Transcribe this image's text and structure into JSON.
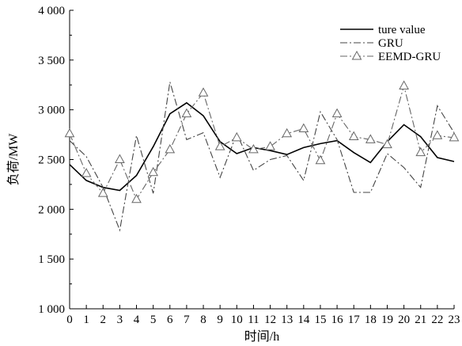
{
  "chart_data": {
    "type": "line",
    "title": "",
    "xlabel": "时间/h",
    "ylabel": "负荷/MW",
    "x": [
      0,
      1,
      2,
      3,
      4,
      5,
      6,
      7,
      8,
      9,
      10,
      11,
      12,
      13,
      14,
      15,
      16,
      17,
      18,
      19,
      20,
      21,
      22,
      23
    ],
    "xlim": [
      0,
      23
    ],
    "ylim": [
      1000,
      4000
    ],
    "y_ticks": [
      1000,
      1500,
      2000,
      2500,
      3000,
      3500,
      4000
    ],
    "y_tick_labels": [
      "1 000",
      "1 500",
      "2 000",
      "2 500",
      "3 000",
      "3 500",
      "4 000"
    ],
    "x_tick_labels": [
      "0",
      "1",
      "2",
      "3",
      "4",
      "5",
      "6",
      "7",
      "8",
      "9",
      "10",
      "11",
      "12",
      "13",
      "14",
      "15",
      "16",
      "17",
      "18",
      "19",
      "20",
      "21",
      "22",
      "23"
    ],
    "grid": false,
    "legend_position": "top-right",
    "series": [
      {
        "name": "ture value",
        "style": "solid",
        "color": "#000000",
        "values": [
          2450,
          2290,
          2220,
          2190,
          2340,
          2630,
          2960,
          3070,
          2940,
          2680,
          2560,
          2620,
          2590,
          2550,
          2620,
          2660,
          2690,
          2570,
          2470,
          2680,
          2850,
          2730,
          2520,
          2480
        ]
      },
      {
        "name": "GRU",
        "style": "dashdot",
        "color": "#444444",
        "values": [
          2690,
          2530,
          2220,
          1790,
          2740,
          2160,
          3280,
          2700,
          2770,
          2320,
          2760,
          2390,
          2500,
          2540,
          2290,
          2980,
          2700,
          2170,
          2170,
          2560,
          2420,
          2220,
          3040,
          2770
        ]
      },
      {
        "name": "EEMD-GRU",
        "style": "dashdot-triangle",
        "color": "#666666",
        "values": [
          2760,
          2360,
          2160,
          2500,
          2100,
          2370,
          2600,
          2960,
          3170,
          2630,
          2720,
          2600,
          2630,
          2760,
          2810,
          2490,
          2960,
          2730,
          2700,
          2650,
          3240,
          2570,
          2740,
          2720
        ]
      }
    ]
  }
}
